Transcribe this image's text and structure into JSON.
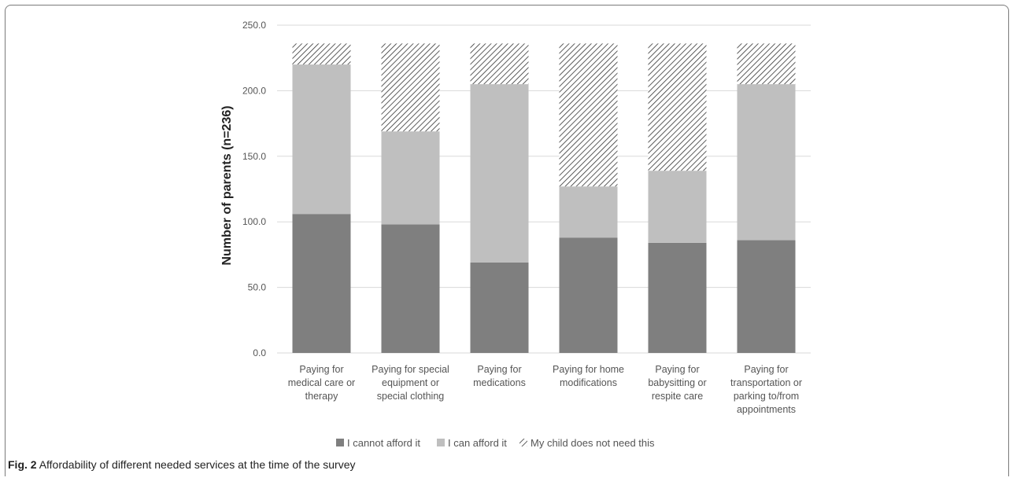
{
  "caption": {
    "label": "Fig. 2",
    "text": "Affordability of different needed services at the time of the survey"
  },
  "chart_data": {
    "type": "bar",
    "stacked": true,
    "title": "",
    "xlabel": "",
    "ylabel": "Number of parents (n=236)",
    "ylim": [
      0,
      250
    ],
    "yticks": [
      "0.0",
      "50.0",
      "100.0",
      "150.0",
      "200.0",
      "250.0"
    ],
    "grid": true,
    "legend_position": "bottom",
    "categories": [
      [
        "Paying for",
        "medical care or",
        "therapy"
      ],
      [
        "Paying for special",
        "equipment or",
        "special clothing"
      ],
      [
        "Paying for",
        "medications"
      ],
      [
        "Paying for home",
        "modifications"
      ],
      [
        "Paying for",
        "babysitting or",
        "respite care"
      ],
      [
        "Paying for",
        "transportation or",
        "parking to/from",
        "appointments"
      ]
    ],
    "series": [
      {
        "name": "I cannot afford it",
        "color": "#7f7f7f",
        "pattern": "solid",
        "values": [
          106,
          98,
          69,
          88,
          84,
          86
        ]
      },
      {
        "name": "I can afford it",
        "color": "#bfbfbf",
        "pattern": "solid",
        "values": [
          114,
          71,
          136,
          39,
          55,
          119
        ]
      },
      {
        "name": "My child does not need this",
        "color": "#404040",
        "pattern": "hatched",
        "values": [
          16,
          67,
          31,
          109,
          97,
          31
        ]
      }
    ]
  }
}
